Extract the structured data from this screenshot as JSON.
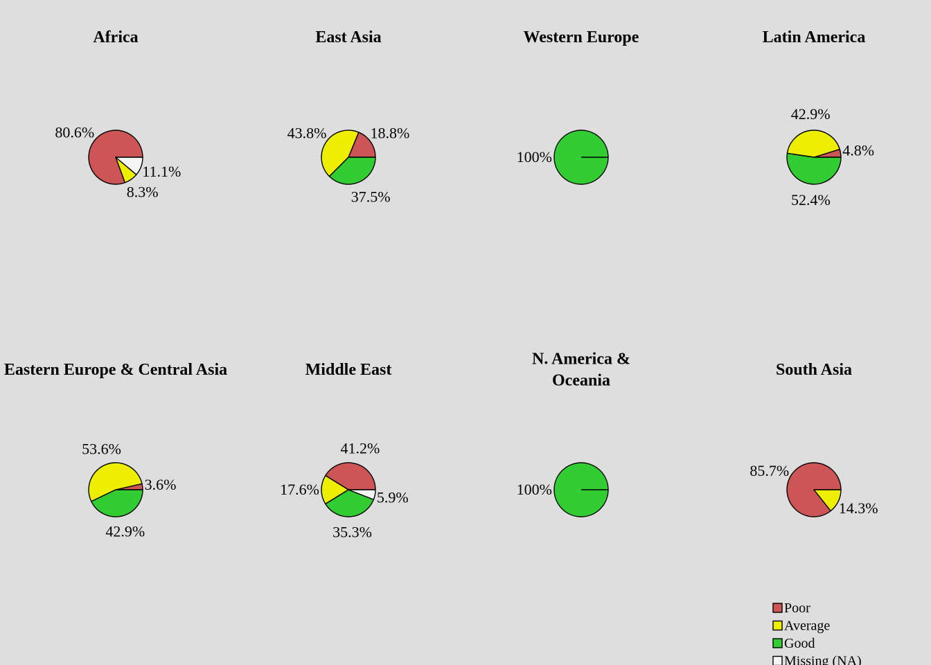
{
  "chart_data": {
    "type": "pie",
    "legend": {
      "placement": "bottom-right",
      "entries": [
        {
          "label": "Poor",
          "color": "#cd5555"
        },
        {
          "label": "Average",
          "color": "#eeee00"
        },
        {
          "label": "Good",
          "color": "#32cd32"
        },
        {
          "label": "Missing (NA)",
          "color": "#f5f5f5"
        }
      ]
    },
    "panels": [
      {
        "title": [
          "Africa"
        ],
        "slices": [
          {
            "category": "Poor",
            "value": 80.6,
            "label": "80.6%"
          },
          {
            "category": "Average",
            "value": 8.3,
            "label": "8.3%"
          },
          {
            "category": "Good",
            "value": 0,
            "label": ""
          },
          {
            "category": "Missing (NA)",
            "value": 11.1,
            "label": "11.1%"
          }
        ]
      },
      {
        "title": [
          "East Asia"
        ],
        "slices": [
          {
            "category": "Poor",
            "value": 18.8,
            "label": "18.8%"
          },
          {
            "category": "Average",
            "value": 43.8,
            "label": "43.8%"
          },
          {
            "category": "Good",
            "value": 37.5,
            "label": "37.5%"
          },
          {
            "category": "Missing (NA)",
            "value": 0,
            "label": ""
          }
        ]
      },
      {
        "title": [
          "Western Europe"
        ],
        "slices": [
          {
            "category": "Poor",
            "value": 0,
            "label": ""
          },
          {
            "category": "Average",
            "value": 0,
            "label": ""
          },
          {
            "category": "Good",
            "value": 100,
            "label": "100%"
          },
          {
            "category": "Missing (NA)",
            "value": 0,
            "label": ""
          }
        ]
      },
      {
        "title": [
          "Latin America"
        ],
        "slices": [
          {
            "category": "Poor",
            "value": 4.8,
            "label": "4.8%"
          },
          {
            "category": "Average",
            "value": 42.9,
            "label": "42.9%"
          },
          {
            "category": "Good",
            "value": 52.4,
            "label": "52.4%"
          },
          {
            "category": "Missing (NA)",
            "value": 0,
            "label": ""
          }
        ]
      },
      {
        "title": [
          "Eastern Europe & Central Asia"
        ],
        "slices": [
          {
            "category": "Poor",
            "value": 3.6,
            "label": "3.6%"
          },
          {
            "category": "Average",
            "value": 53.6,
            "label": "53.6%"
          },
          {
            "category": "Good",
            "value": 42.9,
            "label": "42.9%"
          },
          {
            "category": "Missing (NA)",
            "value": 0,
            "label": ""
          }
        ]
      },
      {
        "title": [
          "Middle East"
        ],
        "slices": [
          {
            "category": "Poor",
            "value": 41.2,
            "label": "41.2%"
          },
          {
            "category": "Average",
            "value": 17.6,
            "label": "17.6%"
          },
          {
            "category": "Good",
            "value": 35.3,
            "label": "35.3%"
          },
          {
            "category": "Missing (NA)",
            "value": 5.9,
            "label": "5.9%"
          }
        ]
      },
      {
        "title": [
          "N. America &",
          "Oceania"
        ],
        "slices": [
          {
            "category": "Poor",
            "value": 0,
            "label": ""
          },
          {
            "category": "Average",
            "value": 0,
            "label": ""
          },
          {
            "category": "Good",
            "value": 100,
            "label": "100%"
          },
          {
            "category": "Missing (NA)",
            "value": 0,
            "label": ""
          }
        ]
      },
      {
        "title": [
          "South Asia"
        ],
        "slices": [
          {
            "category": "Poor",
            "value": 85.7,
            "label": "85.7%"
          },
          {
            "category": "Average",
            "value": 14.3,
            "label": "14.3%"
          },
          {
            "category": "Good",
            "value": 0,
            "label": ""
          },
          {
            "category": "Missing (NA)",
            "value": 0,
            "label": ""
          }
        ]
      }
    ]
  }
}
